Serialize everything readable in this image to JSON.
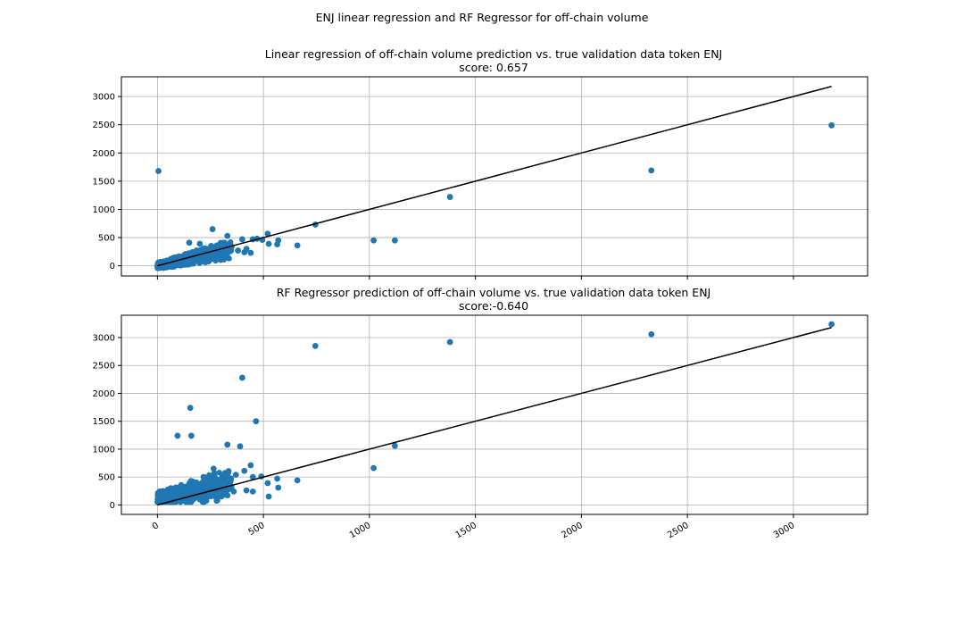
{
  "figure": {
    "suptitle": "ENJ linear regression and RF Regressor for off-chain volume"
  },
  "chart_data": [
    {
      "type": "scatter",
      "title_line1": "Linear regression of off-chain volume prediction vs. true validation data token ENJ",
      "title_line2": "score: 0.657",
      "xlim": [
        -170,
        3350
      ],
      "ylim": [
        -180,
        3350
      ],
      "xticks": [
        0,
        500,
        1000,
        1500,
        2000,
        2500,
        3000
      ],
      "yticks": [
        0,
        500,
        1000,
        1500,
        2000,
        2500,
        3000
      ],
      "show_xtick_labels": false,
      "grid": true,
      "point_color": "#1f77b4",
      "line_color": "#000000",
      "fit_line": [
        [
          0,
          0
        ],
        [
          3180,
          3180
        ]
      ],
      "cluster": {
        "x_range": [
          0,
          350
        ],
        "y_range": [
          -40,
          420
        ]
      },
      "points": [
        [
          5,
          1680
        ],
        [
          260,
          650
        ],
        [
          330,
          530
        ],
        [
          400,
          470
        ],
        [
          450,
          470
        ],
        [
          470,
          480
        ],
        [
          495,
          460
        ],
        [
          520,
          570
        ],
        [
          525,
          390
        ],
        [
          565,
          380
        ],
        [
          570,
          450
        ],
        [
          660,
          360
        ],
        [
          745,
          730
        ],
        [
          1020,
          450
        ],
        [
          1120,
          450
        ],
        [
          1380,
          1220
        ],
        [
          2330,
          1690
        ],
        [
          3180,
          2490
        ],
        [
          380,
          270
        ],
        [
          410,
          240
        ],
        [
          440,
          230
        ],
        [
          420,
          300
        ],
        [
          300,
          320
        ],
        [
          350,
          340
        ],
        [
          280,
          360
        ],
        [
          150,
          410
        ],
        [
          200,
          390
        ]
      ]
    },
    {
      "type": "scatter",
      "title_line1": "RF Regressor prediction of off-chain volume vs. true validation data token ENJ",
      "title_line2": "score:-0.640",
      "xlim": [
        -170,
        3350
      ],
      "ylim": [
        -170,
        3400
      ],
      "xticks": [
        0,
        500,
        1000,
        1500,
        2000,
        2500,
        3000
      ],
      "yticks": [
        0,
        500,
        1000,
        1500,
        2000,
        2500,
        3000
      ],
      "show_xtick_labels": true,
      "grid": true,
      "point_color": "#1f77b4",
      "line_color": "#000000",
      "fit_line": [
        [
          0,
          0
        ],
        [
          3180,
          3180
        ]
      ],
      "cluster": {
        "x_range": [
          0,
          350
        ],
        "y_range": [
          50,
          650
        ]
      },
      "points": [
        [
          745,
          2850
        ],
        [
          1380,
          2920
        ],
        [
          2330,
          3060
        ],
        [
          3180,
          3240
        ],
        [
          400,
          2280
        ],
        [
          155,
          1740
        ],
        [
          465,
          1500
        ],
        [
          95,
          1240
        ],
        [
          160,
          1240
        ],
        [
          330,
          1080
        ],
        [
          390,
          1050
        ],
        [
          1120,
          1060
        ],
        [
          1020,
          660
        ],
        [
          265,
          650
        ],
        [
          410,
          610
        ],
        [
          440,
          710
        ],
        [
          450,
          500
        ],
        [
          490,
          510
        ],
        [
          520,
          390
        ],
        [
          525,
          150
        ],
        [
          565,
          470
        ],
        [
          570,
          310
        ],
        [
          660,
          440
        ],
        [
          420,
          260
        ],
        [
          450,
          240
        ],
        [
          360,
          240
        ],
        [
          300,
          200
        ],
        [
          330,
          530
        ],
        [
          220,
          50
        ],
        [
          370,
          540
        ]
      ]
    }
  ]
}
